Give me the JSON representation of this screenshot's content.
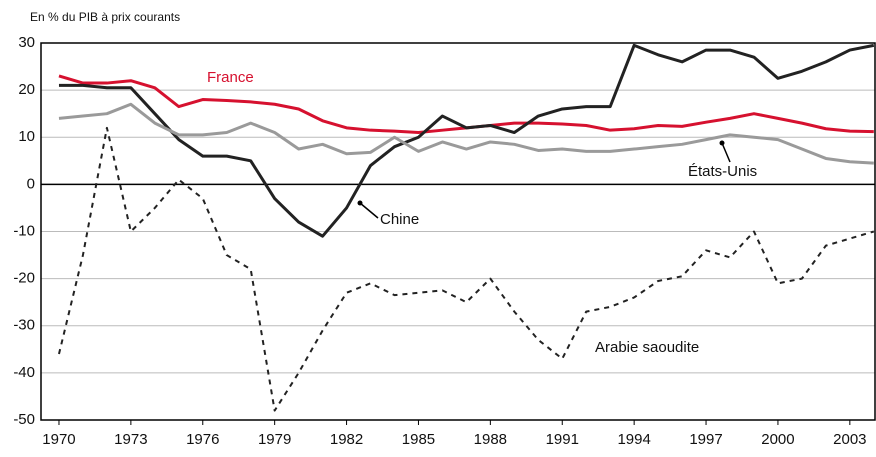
{
  "chart_data": {
    "type": "line",
    "title": "En % du PIB à prix courants",
    "x": [
      1970,
      1971,
      1972,
      1973,
      1974,
      1975,
      1976,
      1977,
      1978,
      1979,
      1980,
      1981,
      1982,
      1983,
      1984,
      1985,
      1986,
      1987,
      1988,
      1989,
      1990,
      1991,
      1992,
      1993,
      1994,
      1995,
      1996,
      1997,
      1998,
      1999,
      2000,
      2001,
      2002,
      2003,
      2004
    ],
    "series": [
      {
        "name": "France",
        "color": "#d6112f",
        "style": "solid",
        "values": [
          23,
          21.5,
          21.5,
          22,
          20.5,
          16.5,
          18,
          17.8,
          17.5,
          17,
          16,
          13.5,
          12,
          11.5,
          11.3,
          11,
          11.5,
          12,
          12.5,
          13,
          13,
          12.8,
          12.5,
          11.5,
          11.8,
          12.5,
          12.3,
          13.2,
          14,
          15,
          14,
          13,
          11.8,
          11.3,
          11.2
        ]
      },
      {
        "name": "Chine",
        "color": "#222222",
        "style": "solid",
        "values": [
          21,
          21,
          20.5,
          20.5,
          15,
          9.5,
          6,
          6,
          5,
          -3,
          -8,
          -11,
          -5,
          4,
          8,
          10,
          14.5,
          12,
          12.5,
          11,
          14.5,
          16,
          16.5,
          16.5,
          29.5,
          27.5,
          26,
          28.5,
          28.5,
          27,
          22.5,
          24,
          26,
          28.5,
          29.5
        ]
      },
      {
        "name": "États-Unis",
        "color": "#9a9a9a",
        "style": "solid",
        "values": [
          14,
          14.5,
          15,
          17,
          13,
          10.5,
          10.5,
          11,
          13,
          11,
          7.5,
          8.5,
          6.5,
          6.8,
          10,
          7,
          9,
          7.5,
          9,
          8.5,
          7.2,
          7.5,
          7,
          7,
          7.5,
          8,
          8.5,
          9.5,
          10.5,
          10,
          9.5,
          7.5,
          5.5,
          4.8,
          4.5
        ]
      },
      {
        "name": "Arabie saoudite",
        "color": "#222222",
        "style": "dashed",
        "values": [
          -36,
          -15,
          12,
          -10,
          -5,
          1,
          -3,
          -15,
          -18,
          -48,
          -40,
          -31,
          -23,
          -21,
          -23.5,
          -23,
          -22.5,
          -25,
          -20,
          -27,
          -33,
          -37,
          -27,
          -26,
          -24,
          -20.5,
          -19.5,
          -14,
          -15.5,
          -10,
          -21,
          -20,
          -13,
          -11.5,
          -10
        ]
      }
    ],
    "xlim": [
      1969.25,
      2004.05
    ],
    "xticks": [
      1970,
      1973,
      1976,
      1979,
      1982,
      1985,
      1988,
      1991,
      1994,
      1997,
      2000,
      2003
    ],
    "ylim": [
      -50,
      30
    ],
    "yticks": [
      -50,
      -40,
      -30,
      -20,
      -10,
      0,
      10,
      20,
      30
    ],
    "grid": true
  }
}
